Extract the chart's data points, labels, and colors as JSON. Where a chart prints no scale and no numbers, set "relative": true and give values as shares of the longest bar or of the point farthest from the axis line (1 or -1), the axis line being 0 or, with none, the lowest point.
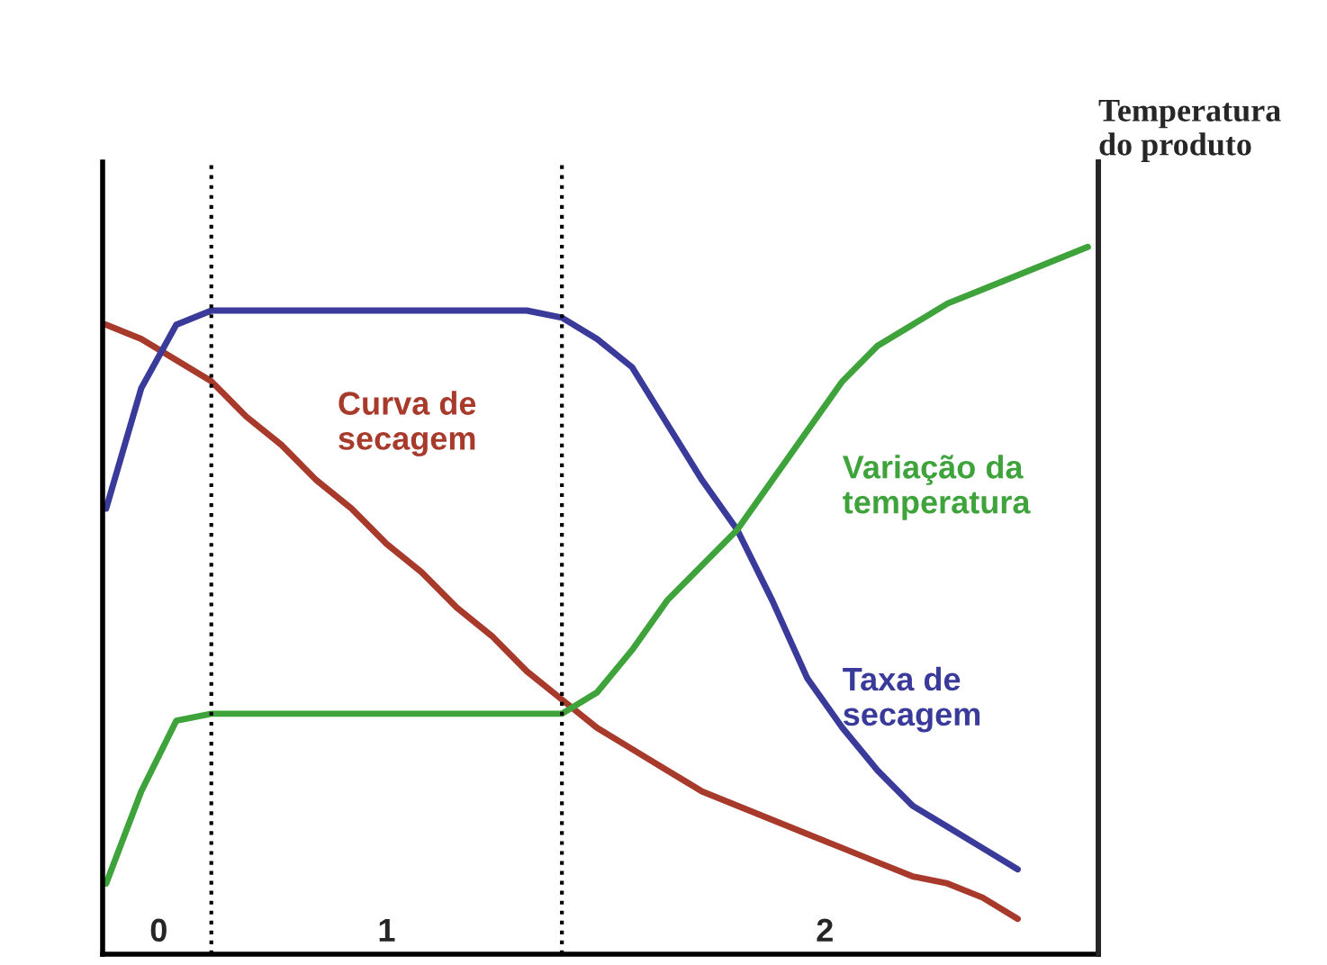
{
  "chart_data": {
    "type": "line",
    "relative": true,
    "y2label": "Temperatura\ndo produto",
    "categories": [
      null,
      null,
      null,
      null,
      null,
      null,
      null,
      null,
      null,
      null,
      null,
      null,
      null,
      null,
      null,
      null,
      null,
      null,
      null,
      null,
      null,
      null,
      null,
      null,
      null,
      null,
      null,
      null,
      null
    ],
    "series": [
      {
        "name": "Curva de\nsecagem",
        "color": "#a83a2c",
        "values": [
          0.89,
          0.87,
          0.84,
          0.81,
          0.76,
          0.72,
          0.67,
          0.63,
          0.58,
          0.54,
          0.49,
          0.45,
          0.4,
          0.36,
          0.32,
          0.29,
          0.26,
          0.23,
          0.21,
          0.19,
          0.17,
          0.15,
          0.13,
          0.11,
          0.1,
          0.08,
          0.05,
          null,
          null
        ]
      },
      {
        "name": "Taxa de\nsecagem",
        "color": "#3a3a9a",
        "values": [
          0.63,
          0.8,
          0.89,
          0.91,
          0.91,
          0.91,
          0.91,
          0.91,
          0.91,
          0.91,
          0.91,
          0.91,
          0.91,
          0.9,
          0.87,
          0.83,
          0.75,
          0.67,
          0.6,
          0.5,
          0.39,
          0.32,
          0.26,
          0.21,
          0.18,
          0.15,
          0.12,
          null,
          null
        ]
      },
      {
        "name": "Variação da\ntemperatura",
        "color": "#3da33a",
        "values": [
          0.1,
          0.23,
          0.33,
          0.34,
          0.34,
          0.34,
          0.34,
          0.34,
          0.34,
          0.34,
          0.34,
          0.34,
          0.34,
          0.34,
          0.37,
          0.43,
          0.5,
          0.55,
          0.6,
          0.67,
          0.74,
          0.81,
          0.86,
          0.89,
          0.92,
          0.94,
          0.96,
          0.98,
          1.0
        ]
      }
    ],
    "annotations": [
      "0",
      "1",
      "2"
    ],
    "legend": false
  }
}
